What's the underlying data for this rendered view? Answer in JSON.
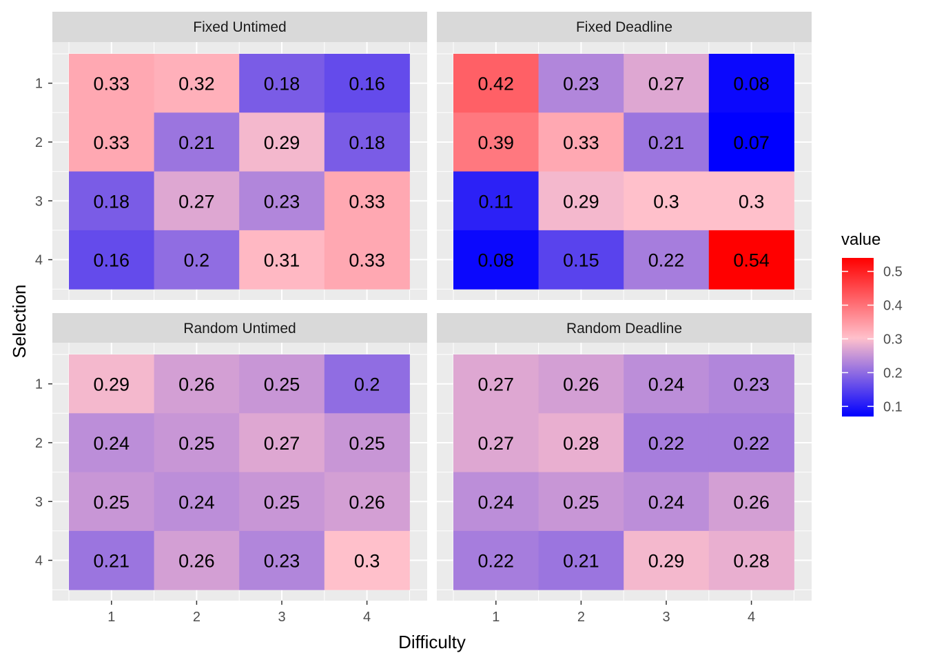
{
  "chart_data": {
    "type": "heatmap",
    "xlabel": "Difficulty",
    "ylabel": "Selection",
    "x_categories": [
      "1",
      "2",
      "3",
      "4"
    ],
    "y_categories": [
      "1",
      "2",
      "3",
      "4"
    ],
    "facets": [
      {
        "title": "Fixed Untimed",
        "values": [
          [
            0.33,
            0.32,
            0.18,
            0.16
          ],
          [
            0.33,
            0.21,
            0.29,
            0.18
          ],
          [
            0.18,
            0.27,
            0.23,
            0.33
          ],
          [
            0.16,
            0.2,
            0.31,
            0.33
          ]
        ]
      },
      {
        "title": "Fixed Deadline",
        "values": [
          [
            0.42,
            0.23,
            0.27,
            0.08
          ],
          [
            0.39,
            0.33,
            0.21,
            0.07
          ],
          [
            0.11,
            0.29,
            0.3,
            0.3
          ],
          [
            0.08,
            0.15,
            0.22,
            0.54
          ]
        ]
      },
      {
        "title": "Random Untimed",
        "values": [
          [
            0.29,
            0.26,
            0.25,
            0.2
          ],
          [
            0.24,
            0.25,
            0.27,
            0.25
          ],
          [
            0.25,
            0.24,
            0.25,
            0.26
          ],
          [
            0.21,
            0.26,
            0.23,
            0.3
          ]
        ]
      },
      {
        "title": "Random Deadline",
        "values": [
          [
            0.27,
            0.26,
            0.24,
            0.23
          ],
          [
            0.27,
            0.28,
            0.22,
            0.22
          ],
          [
            0.24,
            0.25,
            0.24,
            0.26
          ],
          [
            0.22,
            0.21,
            0.29,
            0.28
          ]
        ]
      }
    ],
    "legend": {
      "title": "value",
      "breaks": [
        "0.5",
        "0.4",
        "0.3",
        "0.2",
        "0.1"
      ],
      "placement": "right"
    },
    "color_scale": {
      "low": "#0000ff",
      "mid": "#ffc0cb",
      "high": "#ff0000",
      "min": 0.07,
      "mid_value": 0.3,
      "max": 0.54
    },
    "grid": true,
    "panel_background": "#ebebeb",
    "strip_background": "#d9d9d9"
  }
}
